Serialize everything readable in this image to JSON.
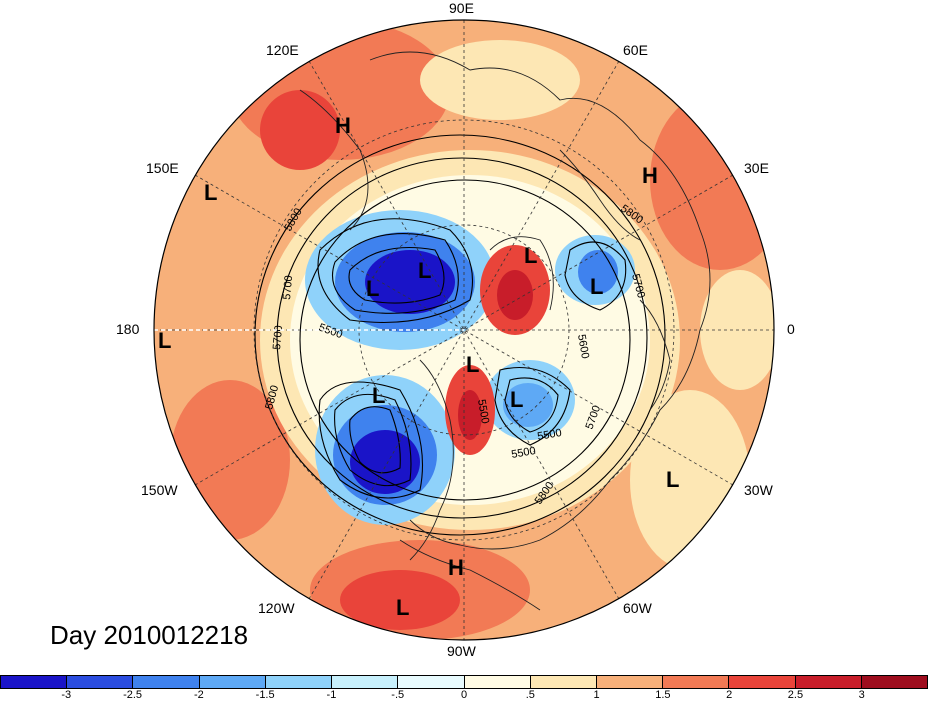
{
  "title": "Day 2010012218",
  "longitude_labels": {
    "e90": "90E",
    "e120": "120E",
    "e60": "60E",
    "e150": "150E",
    "e30": "30E",
    "d180": "180",
    "d0": "0",
    "w150": "150W",
    "w30": "30W",
    "w120": "120W",
    "w60": "60W",
    "w90": "90W"
  },
  "pressure_systems": {
    "high": "H",
    "low": "L"
  },
  "contour_labels": [
    "5800",
    "5700",
    "5500",
    "5700",
    "5800",
    "5700",
    "5800",
    "5600",
    "5500",
    "5700",
    "5500",
    "5800",
    "5500"
  ],
  "colorbar": {
    "colors": [
      "#1a14c8",
      "#2b4de0",
      "#3f82ee",
      "#5ea9f5",
      "#8fd2fa",
      "#c7f0fc",
      "#e8fbfe",
      "#fffbe4",
      "#fde7b4",
      "#f7b07a",
      "#f27a55",
      "#e9443a",
      "#c81d2a",
      "#9e0d1e"
    ],
    "labels": [
      "-3",
      "-2.5",
      "-2",
      "-1.5",
      "-1",
      "-.5",
      "0",
      ".5",
      "1",
      "1.5",
      "2",
      "2.5",
      "3"
    ]
  }
}
